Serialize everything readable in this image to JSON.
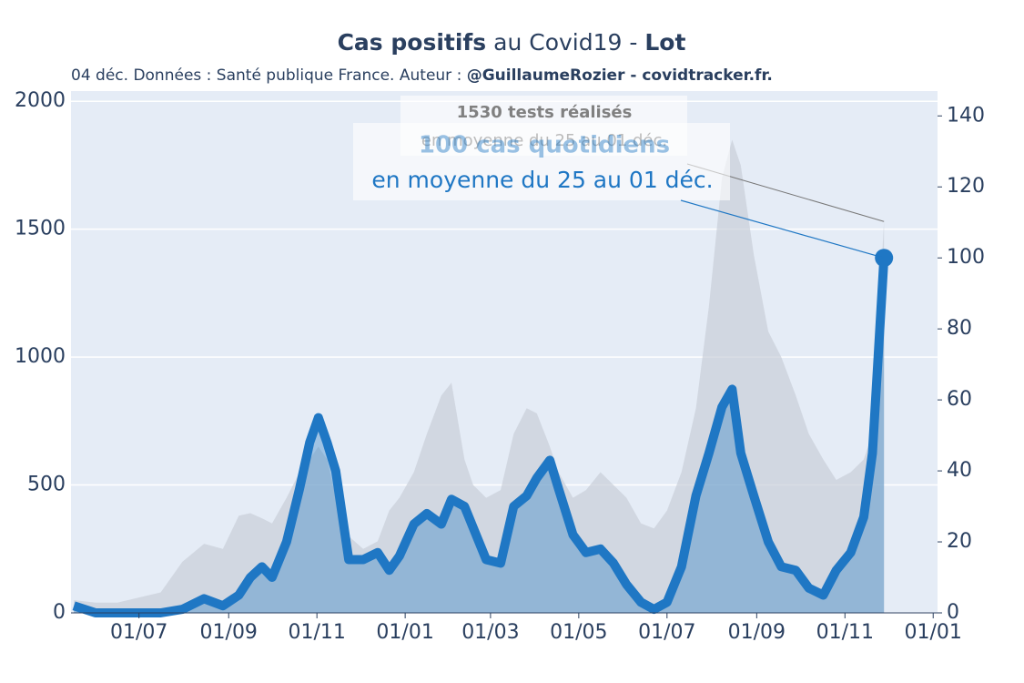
{
  "chart_data": {
    "type": "line",
    "title": {
      "bold1": "Cas positifs",
      "middle": " au Covid19 - ",
      "bold2": "Lot"
    },
    "subtitle": {
      "text": "04 déc. Données : Santé publique France. Auteur : ",
      "bold": "@GuillaumeRozier - covidtracker.fr."
    },
    "x": [
      -45,
      -30,
      -15,
      0,
      15,
      30,
      45,
      58,
      69,
      77,
      85,
      92,
      102,
      111,
      118,
      124,
      130,
      136,
      145,
      155,
      165,
      173,
      180,
      190,
      199,
      209,
      216,
      225,
      231,
      240,
      250,
      259,
      268,
      275,
      284,
      290,
      300,
      309,
      319,
      328,
      337,
      347,
      356,
      365,
      375,
      385,
      394,
      403,
      410,
      416,
      425,
      435,
      444,
      454,
      463,
      473,
      482,
      492,
      501,
      507,
      515
    ],
    "series": [
      {
        "color": "#c9ced8",
        "axis": "y",
        "values": [
          50,
          40,
          40,
          60,
          80,
          200,
          270,
          250,
          380,
          390,
          370,
          350,
          450,
          550,
          600,
          650,
          600,
          450,
          300,
          250,
          280,
          400,
          450,
          550,
          700,
          850,
          900,
          600,
          500,
          450,
          480,
          700,
          800,
          780,
          650,
          550,
          450,
          480,
          550,
          500,
          450,
          350,
          330,
          400,
          550,
          800,
          1200,
          1700,
          1850,
          1750,
          1400,
          1100,
          1000,
          850,
          700,
          600,
          520,
          550,
          600,
          700,
          1530
        ]
      },
      {
        "color": "#1f77c4",
        "axis": "y2",
        "values": [
          2,
          0,
          0,
          0,
          0,
          1,
          4,
          2,
          5,
          10,
          13,
          10,
          20,
          35,
          48,
          55,
          48,
          40,
          15,
          15,
          17,
          12,
          16,
          25,
          28,
          25,
          32,
          30,
          24,
          15,
          14,
          30,
          33,
          38,
          43,
          35,
          22,
          17,
          18,
          14,
          8,
          3,
          1,
          3,
          13,
          33,
          45,
          58,
          63,
          45,
          33,
          20,
          13,
          12,
          7,
          5,
          12,
          17,
          27,
          45,
          100
        ]
      }
    ],
    "xlim": [
      -47,
      552
    ],
    "xticks": [
      {
        "value": 0,
        "label": "01/07"
      },
      {
        "value": 62,
        "label": "01/09"
      },
      {
        "value": 123,
        "label": "01/11"
      },
      {
        "value": 184,
        "label": "01/01"
      },
      {
        "value": 243,
        "label": "01/03"
      },
      {
        "value": 304,
        "label": "01/05"
      },
      {
        "value": 365,
        "label": "01/07"
      },
      {
        "value": 427,
        "label": "01/09"
      },
      {
        "value": 488,
        "label": "01/11"
      },
      {
        "value": 549,
        "label": "01/01"
      }
    ],
    "ylim": [
      0,
      2040
    ],
    "yticks": [
      0,
      500,
      1000,
      1500,
      2000
    ],
    "y2lim": [
      0,
      147
    ],
    "y2ticks": [
      0,
      20,
      40,
      60,
      80,
      100,
      120,
      140
    ],
    "grid": true,
    "annotations": [
      {
        "series": 0,
        "title": "1530 tests réalisés",
        "text": "en moyenne du 25 au 01 déc."
      },
      {
        "series": 1,
        "title": "100 cas quotidiens",
        "text": "en moyenne du 25 au 01 déc."
      }
    ]
  }
}
